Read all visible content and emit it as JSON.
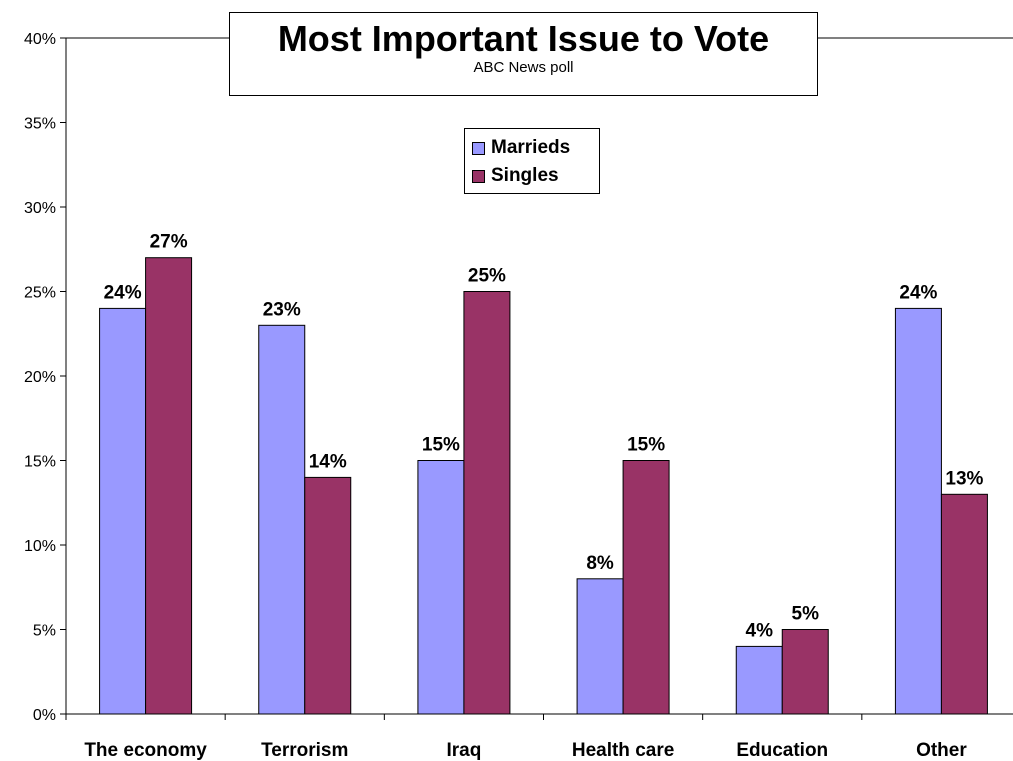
{
  "chart_data": {
    "type": "bar",
    "title": "Most Important Issue to Vote",
    "subtitle": "ABC News poll",
    "categories": [
      "The economy",
      "Terrorism",
      "Iraq",
      "Health care",
      "Education",
      "Other"
    ],
    "series": [
      {
        "name": "Marrieds",
        "color": "#9999ff",
        "values": [
          24,
          23,
          15,
          8,
          4,
          24
        ],
        "labels": [
          "24%",
          "23%",
          "15%",
          "8%",
          "4%",
          "24%"
        ]
      },
      {
        "name": "Singles",
        "color": "#993366",
        "values": [
          27,
          14,
          25,
          15,
          5,
          13
        ],
        "labels": [
          "27%",
          "14%",
          "25%",
          "15%",
          "5%",
          "13%"
        ]
      }
    ],
    "ylim": [
      0,
      40
    ],
    "yticks": [
      0,
      5,
      10,
      15,
      20,
      25,
      30,
      35,
      40
    ],
    "ytick_labels": [
      "0%",
      "5%",
      "10%",
      "15%",
      "20%",
      "25%",
      "30%",
      "35%",
      "40%"
    ],
    "grid": false,
    "legend_position": "top-center"
  }
}
